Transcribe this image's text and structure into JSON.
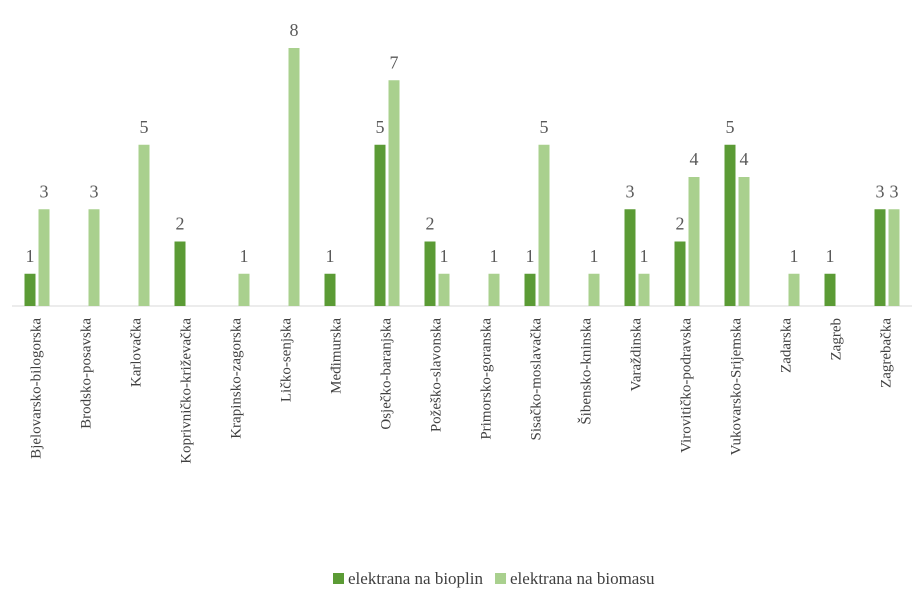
{
  "chart_data": {
    "type": "bar",
    "categories": [
      "Bjelovarsko-bilogorska",
      "Brodsko-posavska",
      "Karlovačka",
      "Koprivničko-križevačka",
      "Krapinsko-zagorska",
      "Ličko-senjska",
      "Međimurska",
      "Osječko-baranjska",
      "Požeško-slavonska",
      "Primorsko-goranska",
      "Sisačko-moslavačka",
      "Šibensko-kninska",
      "Varaždinska",
      "Virovitičko-podravska",
      "Vukovarsko-Srijemska",
      "Zadarska",
      "Zagreb",
      "Zagrebačka"
    ],
    "series": [
      {
        "name": "elektrana na bioplin",
        "color": "#5b9b35",
        "values": [
          1,
          null,
          null,
          2,
          null,
          null,
          1,
          5,
          2,
          null,
          1,
          null,
          3,
          2,
          5,
          null,
          1,
          3
        ]
      },
      {
        "name": "elektrana na biomasu",
        "color": "#a9d08e",
        "values": [
          3,
          3,
          5,
          null,
          1,
          8,
          null,
          7,
          1,
          1,
          5,
          1,
          1,
          4,
          4,
          1,
          null,
          3
        ]
      }
    ],
    "ylim": [
      0,
      8
    ]
  }
}
